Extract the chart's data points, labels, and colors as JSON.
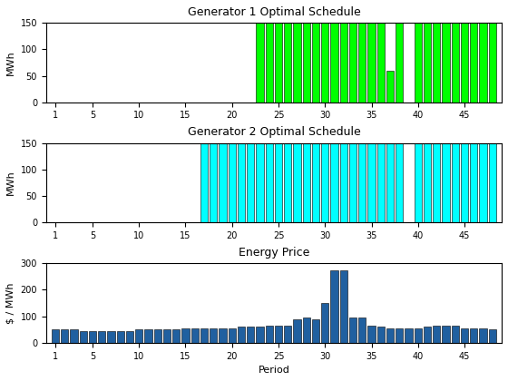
{
  "gen1_title": "Generator 1 Optimal Schedule",
  "gen2_title": "Generator 2 Optimal Schedule",
  "price_title": "Energy Price",
  "ylabel_mwh": "MWh",
  "ylabel_price": "$ / MWh",
  "xlabel": "Period",
  "gen1_values": [
    0,
    0,
    0,
    0,
    0,
    0,
    0,
    0,
    0,
    0,
    0,
    0,
    0,
    0,
    0,
    0,
    0,
    0,
    0,
    0,
    0,
    0,
    150,
    150,
    150,
    150,
    150,
    150,
    150,
    150,
    150,
    150,
    150,
    150,
    150,
    150,
    60,
    150,
    0,
    150,
    150,
    150,
    150,
    150,
    150,
    150,
    150,
    150
  ],
  "gen2_values": [
    0,
    0,
    0,
    0,
    0,
    0,
    0,
    0,
    0,
    0,
    0,
    0,
    0,
    0,
    0,
    0,
    150,
    150,
    150,
    150,
    150,
    150,
    150,
    150,
    150,
    150,
    150,
    150,
    150,
    150,
    150,
    150,
    150,
    150,
    150,
    150,
    150,
    150,
    0,
    150,
    150,
    150,
    150,
    150,
    150,
    150,
    150,
    150
  ],
  "price_values": [
    50,
    50,
    50,
    45,
    45,
    45,
    45,
    45,
    45,
    50,
    50,
    50,
    50,
    50,
    55,
    55,
    55,
    55,
    55,
    55,
    60,
    60,
    60,
    65,
    65,
    65,
    90,
    95,
    90,
    150,
    275,
    275,
    95,
    95,
    65,
    60,
    55,
    55,
    55,
    55,
    60,
    65,
    65,
    65,
    55,
    55,
    55,
    50
  ],
  "n_periods": 48,
  "gen1_color": "#00ff00",
  "gen2_color": "#00ffff",
  "price_color": "#2060a0",
  "gen1_ylim": [
    0,
    150
  ],
  "gen2_ylim": [
    0,
    150
  ],
  "price_ylim": [
    0,
    300
  ],
  "xticks": [
    1,
    5,
    10,
    15,
    20,
    25,
    30,
    35,
    40,
    45
  ],
  "xtick_labels": [
    "1",
    "5",
    "10",
    "15",
    "20",
    "25",
    "30",
    "35",
    "40",
    "45"
  ],
  "gen1_yticks": [
    0,
    50,
    100,
    150
  ],
  "gen2_yticks": [
    0,
    50,
    100,
    150
  ],
  "price_yticks": [
    0,
    100,
    200,
    300
  ]
}
